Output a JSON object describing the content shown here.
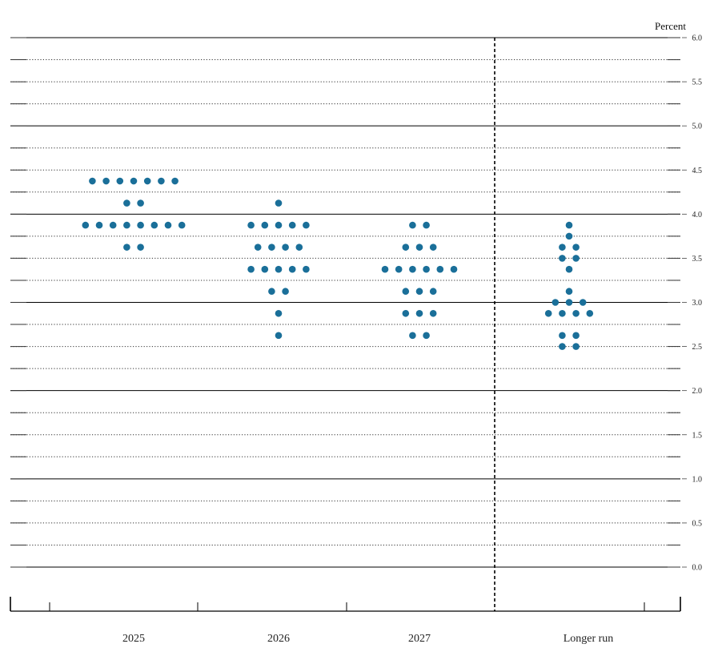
{
  "chart_data": {
    "type": "scatter",
    "unit_label": "Percent",
    "ylim": [
      0,
      6
    ],
    "y_ticks": [
      "0.0",
      "0.5",
      "1.0",
      "1.5",
      "2.0",
      "2.5",
      "3.0",
      "3.5",
      "4.0",
      "4.5",
      "5.0",
      "5.5",
      "6.0"
    ],
    "categories": [
      "2025",
      "2026",
      "2027",
      "Longer run"
    ],
    "colors": {
      "dot": "#1a6f99",
      "grid": "#333333",
      "axis": "#000000"
    },
    "grid": true,
    "points": [
      {
        "category": "2025",
        "y": 4.375,
        "count": 7
      },
      {
        "category": "2025",
        "y": 4.125,
        "count": 2
      },
      {
        "category": "2025",
        "y": 3.875,
        "count": 8
      },
      {
        "category": "2025",
        "y": 3.625,
        "count": 2
      },
      {
        "category": "2026",
        "y": 4.125,
        "count": 1
      },
      {
        "category": "2026",
        "y": 3.875,
        "count": 5
      },
      {
        "category": "2026",
        "y": 3.625,
        "count": 4
      },
      {
        "category": "2026",
        "y": 3.375,
        "count": 5
      },
      {
        "category": "2026",
        "y": 3.125,
        "count": 2
      },
      {
        "category": "2026",
        "y": 2.875,
        "count": 1
      },
      {
        "category": "2026",
        "y": 2.625,
        "count": 1
      },
      {
        "category": "2027",
        "y": 3.875,
        "count": 2
      },
      {
        "category": "2027",
        "y": 3.625,
        "count": 3
      },
      {
        "category": "2027",
        "y": 3.375,
        "count": 6
      },
      {
        "category": "2027",
        "y": 3.125,
        "count": 3
      },
      {
        "category": "2027",
        "y": 2.875,
        "count": 3
      },
      {
        "category": "2027",
        "y": 2.625,
        "count": 2
      },
      {
        "category": "Longer run",
        "y": 3.875,
        "count": 1
      },
      {
        "category": "Longer run",
        "y": 3.75,
        "count": 1
      },
      {
        "category": "Longer run",
        "y": 3.625,
        "count": 2
      },
      {
        "category": "Longer run",
        "y": 3.5,
        "count": 2
      },
      {
        "category": "Longer run",
        "y": 3.375,
        "count": 1
      },
      {
        "category": "Longer run",
        "y": 3.125,
        "count": 1
      },
      {
        "category": "Longer run",
        "y": 3.0,
        "count": 3
      },
      {
        "category": "Longer run",
        "y": 2.875,
        "count": 4
      },
      {
        "category": "Longer run",
        "y": 2.625,
        "count": 2
      },
      {
        "category": "Longer run",
        "y": 2.5,
        "count": 2
      }
    ]
  }
}
